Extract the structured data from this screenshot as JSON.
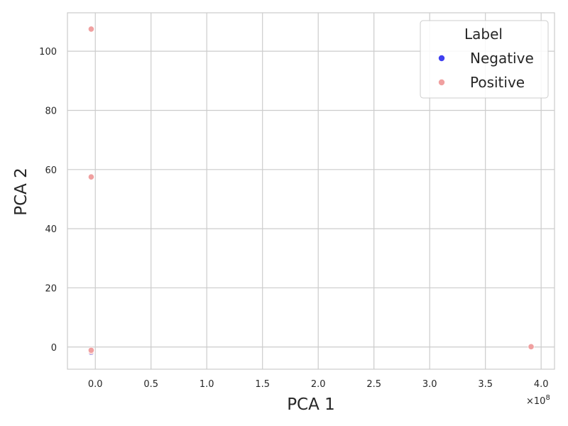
{
  "chart_data": {
    "type": "scatter",
    "xlabel": "PCA 1",
    "ylabel": "PCA 2",
    "x_offset_label": "×10",
    "x_offset_exponent": "8",
    "xlim": [
      -25000000,
      412000000
    ],
    "ylim": [
      -7.5,
      113
    ],
    "xticks": [
      0,
      50000000,
      100000000,
      150000000,
      200000000,
      250000000,
      300000000,
      350000000,
      400000000
    ],
    "xtick_labels": [
      "0.0",
      "0.5",
      "1.0",
      "1.5",
      "2.0",
      "2.5",
      "3.0",
      "3.5",
      "4.0"
    ],
    "yticks": [
      0,
      20,
      40,
      60,
      80,
      100
    ],
    "ytick_labels": [
      "0",
      "20",
      "40",
      "60",
      "80",
      "100"
    ],
    "grid": true,
    "legend": {
      "title": "Label",
      "position": "top-right"
    },
    "series": [
      {
        "name": "Negative",
        "color": "#4040f0",
        "points": [
          {
            "x": -3700000,
            "y": -1.8
          },
          {
            "x": -3700000,
            "y": -1.3
          }
        ]
      },
      {
        "name": "Positive",
        "color": "#f0a0a0",
        "points": [
          {
            "x": -3700000,
            "y": 107.5
          },
          {
            "x": -3700000,
            "y": 57.5
          },
          {
            "x": -3700000,
            "y": -1.5
          },
          {
            "x": -3700000,
            "y": -1.1
          },
          {
            "x": 391000000,
            "y": 0.1
          }
        ]
      }
    ]
  }
}
